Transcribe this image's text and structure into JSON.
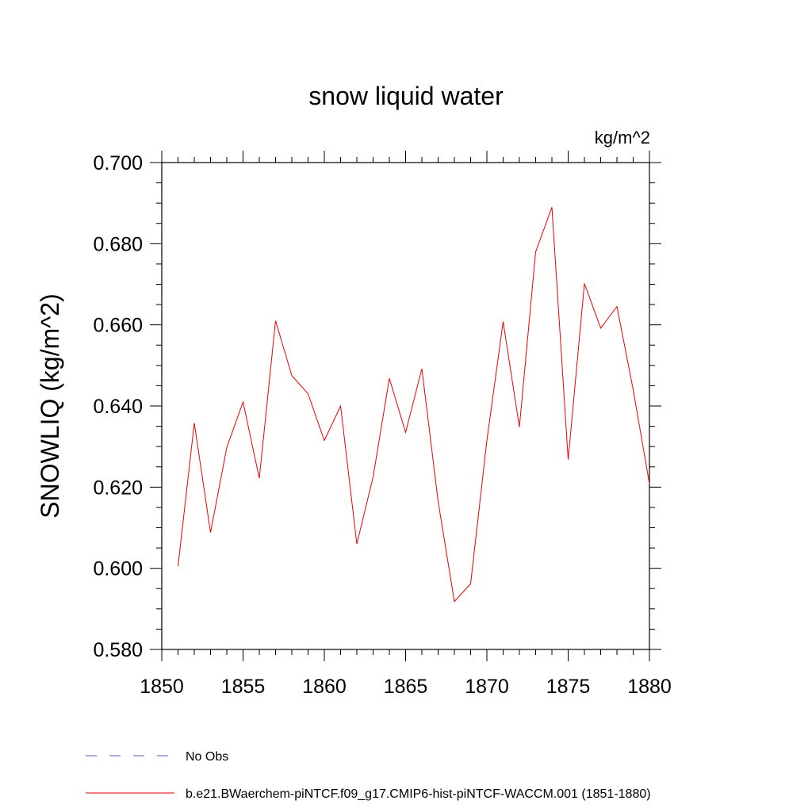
{
  "chart_data": {
    "type": "line",
    "title": "snow liquid water",
    "units": "kg/m^2",
    "ylabel": "SNOWLIQ  (kg/m^2)",
    "xlabel": "",
    "xlim": [
      1850,
      1880
    ],
    "ylim": [
      0.58,
      0.7
    ],
    "x_ticks": [
      1850,
      1855,
      1860,
      1865,
      1870,
      1875,
      1880
    ],
    "x_tick_labels": [
      "1850",
      "1855",
      "1860",
      "1865",
      "1870",
      "1875",
      "1880"
    ],
    "y_ticks": [
      0.58,
      0.6,
      0.62,
      0.64,
      0.66,
      0.68,
      0.7
    ],
    "y_tick_labels": [
      "0.580",
      "0.600",
      "0.620",
      "0.640",
      "0.660",
      "0.680",
      "0.700"
    ],
    "grid": false,
    "legend_placement": "bottom",
    "series": [
      {
        "name": "No Obs",
        "color": "#5a5aa0",
        "style": "dashed",
        "x": [],
        "values": []
      },
      {
        "name": "b.e21.BWaerchem-piNTCF.f09_g17.CMIP6-hist-piNTCF-WACCM.001 (1851-1880)",
        "color": "#ee0000",
        "style": "solid",
        "x": [
          1851,
          1852,
          1853,
          1854,
          1855,
          1856,
          1857,
          1858,
          1859,
          1860,
          1861,
          1862,
          1863,
          1864,
          1865,
          1866,
          1867,
          1868,
          1869,
          1870,
          1871,
          1872,
          1873,
          1874,
          1875,
          1876,
          1877,
          1878,
          1879,
          1880
        ],
        "values": [
          0.6005,
          0.6358,
          0.6088,
          0.6298,
          0.641,
          0.6222,
          0.661,
          0.6475,
          0.643,
          0.6315,
          0.64,
          0.606,
          0.6225,
          0.6468,
          0.6335,
          0.6492,
          0.6165,
          0.5918,
          0.5962,
          0.6315,
          0.6608,
          0.6348,
          0.678,
          0.689,
          0.6268,
          0.6702,
          0.6592,
          0.6645,
          0.644,
          0.6208
        ]
      }
    ]
  }
}
